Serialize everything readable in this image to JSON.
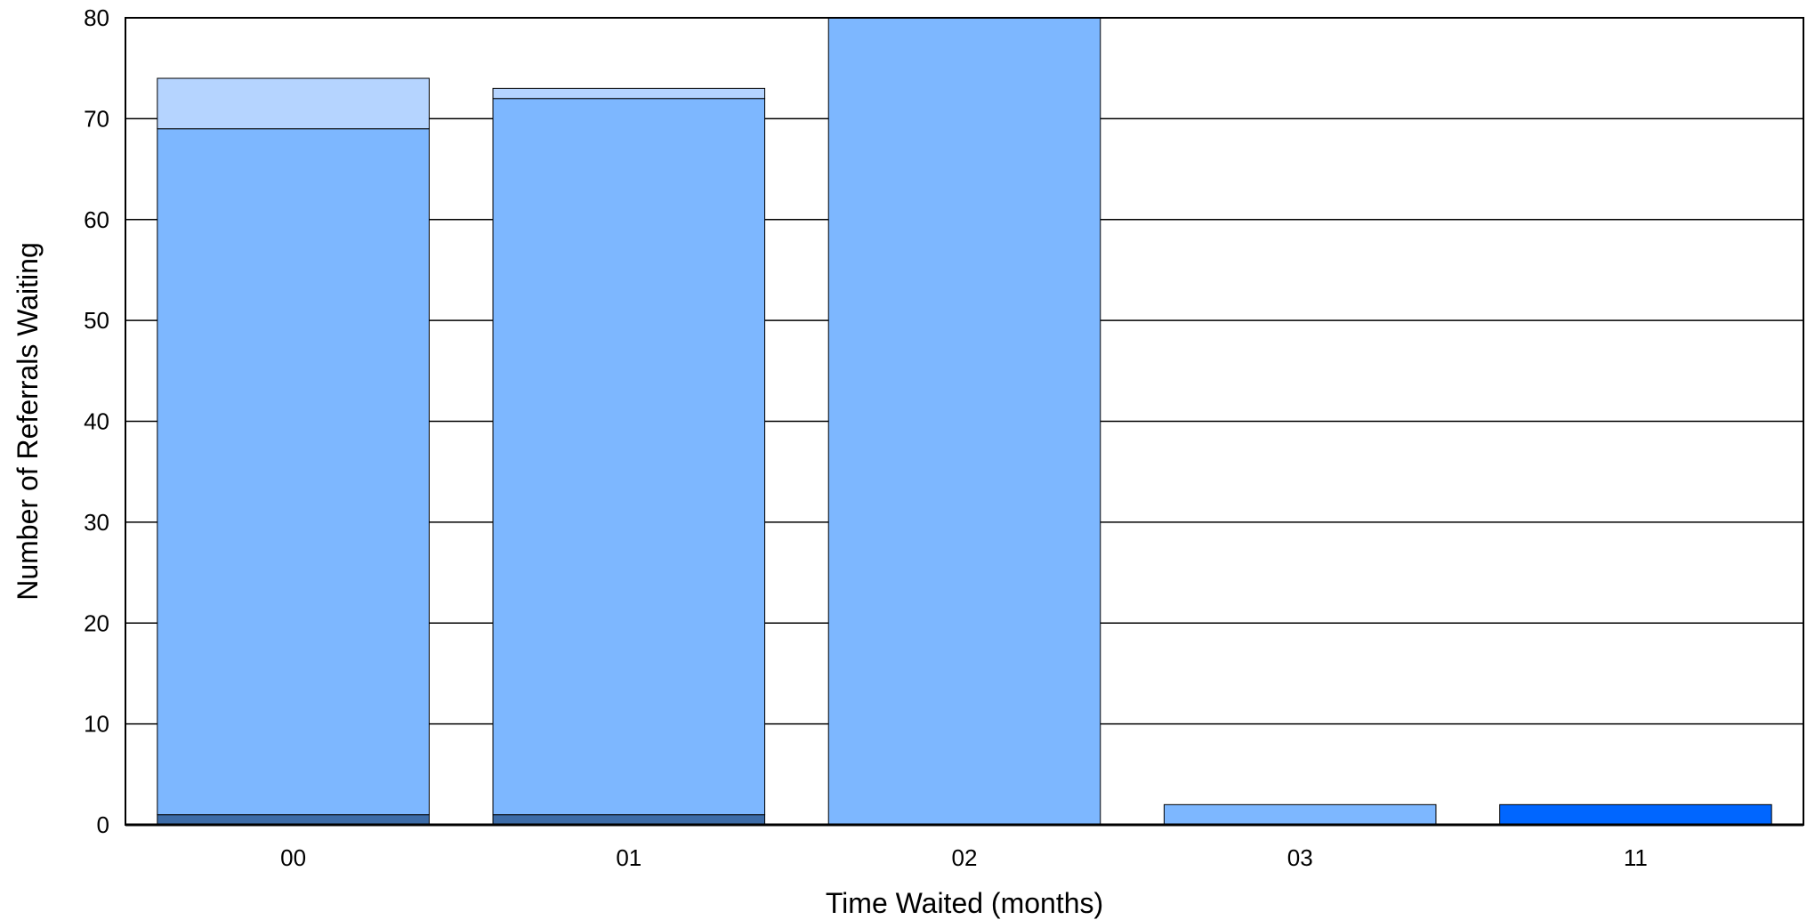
{
  "chart_data": {
    "type": "bar",
    "stacked": true,
    "title": "",
    "xlabel": "Time Waited (months)",
    "ylabel": "Number of Referrals Waiting",
    "categories": [
      "00",
      "01",
      "02",
      "03",
      "11"
    ],
    "ylim": [
      0,
      80
    ],
    "yticks": [
      0,
      10,
      20,
      30,
      40,
      50,
      60,
      70,
      80
    ],
    "grid": true,
    "series": [
      {
        "color": "#3d6ca8",
        "values": [
          1,
          1,
          0,
          0,
          0
        ]
      },
      {
        "color": "#7db7ff",
        "values": [
          68,
          71,
          80,
          2,
          0
        ]
      },
      {
        "color": "#b5d4ff",
        "values": [
          5,
          1,
          0,
          0,
          0
        ]
      },
      {
        "color": "#0066ff",
        "values": [
          0,
          0,
          0,
          0,
          2
        ]
      }
    ]
  }
}
